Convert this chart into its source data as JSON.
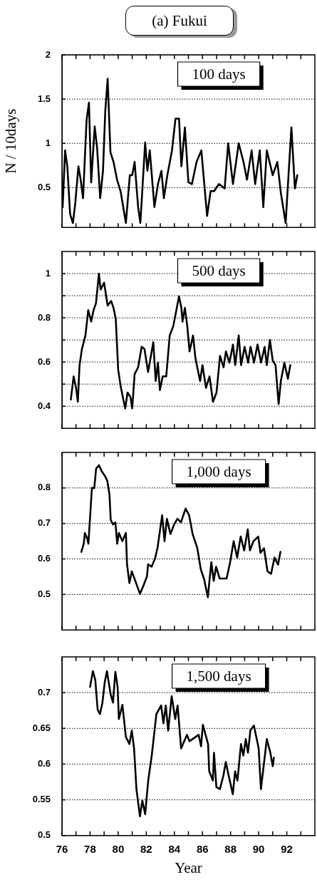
{
  "chart_data": [
    {
      "type": "line",
      "title": "(a) Fukui",
      "ylabel": "N / 10days",
      "annotations": [
        "100 days"
      ],
      "xlim": [
        76,
        94
      ],
      "ylim": [
        0.05,
        2
      ],
      "yticks": [
        0.5,
        1,
        1.5,
        2
      ],
      "xticks": [
        76,
        {
          "value": 77,
          "label": null
        },
        78,
        {
          "value": 79,
          "label": null
        },
        80,
        {
          "value": 81,
          "label": null
        },
        82,
        {
          "value": 83,
          "label": null
        },
        84,
        {
          "value": 85,
          "label": null
        },
        86,
        {
          "value": 87,
          "label": null
        },
        88,
        {
          "value": 89,
          "label": null
        },
        90,
        {
          "value": 91,
          "label": null
        },
        92,
        {
          "value": 93,
          "label": null
        }
      ],
      "tick_labels": "y",
      "grid": "y",
      "legend": false,
      "marker": "none",
      "line_style": "solid",
      "series": [
        {
          "color": "#000000",
          "x": [
            76.05,
            76.22,
            76.38,
            76.58,
            76.78,
            76.95,
            77.17,
            77.33,
            77.5,
            77.75,
            77.92,
            78.08,
            78.33,
            78.5,
            78.72,
            78.92,
            79.08,
            79.25,
            79.45,
            79.67,
            79.92,
            80.17,
            80.55,
            80.83,
            81.0,
            81.17,
            81.42,
            81.58,
            81.92,
            82.08,
            82.25,
            82.58,
            82.83,
            83.08,
            83.25,
            83.5,
            83.83,
            84.08,
            84.33,
            84.5,
            84.75,
            85.0,
            85.25,
            85.58,
            85.92,
            86.33,
            86.58,
            86.83,
            87.17,
            87.58,
            87.83,
            88.17,
            88.58,
            88.92,
            89.17,
            89.5,
            89.75,
            90.08,
            90.33,
            90.58,
            91.0,
            91.33,
            91.58,
            91.92,
            92.33,
            92.58,
            92.75
          ],
          "values": [
            0.28,
            0.92,
            0.74,
            0.2,
            0.1,
            0.33,
            0.74,
            0.59,
            0.38,
            1.26,
            1.46,
            0.56,
            1.19,
            0.95,
            0.38,
            0.69,
            1.36,
            1.73,
            0.9,
            0.79,
            0.59,
            0.46,
            0.1,
            0.64,
            0.64,
            0.79,
            0.28,
            0.1,
            1.01,
            0.69,
            0.92,
            0.28,
            0.54,
            0.69,
            0.38,
            0.64,
            0.92,
            1.28,
            1.28,
            0.74,
            1.18,
            0.56,
            0.54,
            0.79,
            0.92,
            0.18,
            0.46,
            0.46,
            0.54,
            0.49,
            1.0,
            0.54,
            1.0,
            0.79,
            0.59,
            0.92,
            0.54,
            0.92,
            0.28,
            0.92,
            0.64,
            0.79,
            0.44,
            0.1,
            1.18,
            0.49,
            0.64
          ]
        }
      ]
    },
    {
      "type": "line",
      "annotations": [
        "500 days"
      ],
      "xlim": [
        76,
        94
      ],
      "ylim": [
        0.3,
        1.1
      ],
      "yticks": [
        0.4,
        {
          "value": 0.5,
          "label": null
        },
        0.6,
        {
          "value": 0.7,
          "label": null
        },
        0.8,
        {
          "value": 0.9,
          "label": null
        },
        1
      ],
      "xticks": [
        76,
        {
          "value": 77,
          "label": null
        },
        78,
        {
          "value": 79,
          "label": null
        },
        80,
        {
          "value": 81,
          "label": null
        },
        82,
        {
          "value": 83,
          "label": null
        },
        84,
        {
          "value": 85,
          "label": null
        },
        86,
        {
          "value": 87,
          "label": null
        },
        88,
        {
          "value": 89,
          "label": null
        },
        90,
        {
          "value": 91,
          "label": null
        },
        92,
        {
          "value": 93,
          "label": null
        }
      ],
      "tick_labels": "y",
      "grid": "y",
      "legend": false,
      "marker": "none",
      "line_style": "solid",
      "series": [
        {
          "color": "#000000",
          "x": [
            76.63,
            76.83,
            77.0,
            77.13,
            77.25,
            77.42,
            77.67,
            77.87,
            78.08,
            78.25,
            78.42,
            78.63,
            78.75,
            79.0,
            79.25,
            79.5,
            79.67,
            79.83,
            80.0,
            80.17,
            80.33,
            80.5,
            80.67,
            80.87,
            81.0,
            81.17,
            81.42,
            81.67,
            81.87,
            82.13,
            82.33,
            82.5,
            82.67,
            82.83,
            82.97,
            83.17,
            83.42,
            83.67,
            83.92,
            84.08,
            84.33,
            84.5,
            84.58,
            84.75,
            84.92,
            85.08,
            85.33,
            85.5,
            85.83,
            86.0,
            86.25,
            86.5,
            86.75,
            87.0,
            87.25,
            87.5,
            87.67,
            87.92,
            88.17,
            88.33,
            88.58,
            88.75,
            89.0,
            89.25,
            89.42,
            89.67,
            89.92,
            90.17,
            90.42,
            90.58,
            90.8,
            91.0,
            91.2,
            91.42,
            91.58,
            91.83,
            92.08,
            92.25
          ],
          "values": [
            0.43,
            0.535,
            0.483,
            0.42,
            0.586,
            0.659,
            0.72,
            0.835,
            0.783,
            0.835,
            0.866,
            1.0,
            0.928,
            0.959,
            0.855,
            0.876,
            0.845,
            0.793,
            0.566,
            0.493,
            0.442,
            0.39,
            0.462,
            0.442,
            0.39,
            0.545,
            0.576,
            0.669,
            0.659,
            0.555,
            0.628,
            0.69,
            0.514,
            0.597,
            0.473,
            0.535,
            0.535,
            0.72,
            0.762,
            0.814,
            0.897,
            0.845,
            0.783,
            0.845,
            0.762,
            0.648,
            0.72,
            0.617,
            0.514,
            0.586,
            0.483,
            0.535,
            0.42,
            0.462,
            0.628,
            0.576,
            0.648,
            0.597,
            0.679,
            0.586,
            0.72,
            0.586,
            0.669,
            0.597,
            0.669,
            0.597,
            0.679,
            0.597,
            0.669,
            0.586,
            0.7,
            0.607,
            0.586,
            0.41,
            0.514,
            0.597,
            0.524,
            0.586
          ]
        }
      ]
    },
    {
      "type": "line",
      "annotations": [
        "1,000 days"
      ],
      "xlim": [
        76,
        94
      ],
      "ylim": [
        0.4,
        0.9
      ],
      "yticks": [
        0.5,
        0.6,
        0.7,
        0.8
      ],
      "xticks": [
        76,
        {
          "value": 77,
          "label": null
        },
        78,
        {
          "value": 79,
          "label": null
        },
        80,
        {
          "value": 81,
          "label": null
        },
        82,
        {
          "value": 83,
          "label": null
        },
        84,
        {
          "value": 85,
          "label": null
        },
        86,
        {
          "value": 87,
          "label": null
        },
        88,
        {
          "value": 89,
          "label": null
        },
        90,
        {
          "value": 91,
          "label": null
        },
        92,
        {
          "value": 93,
          "label": null
        }
      ],
      "tick_labels": "y",
      "grid": "y",
      "legend": false,
      "marker": "none",
      "line_style": "solid",
      "series": [
        {
          "color": "#000000",
          "x": [
            77.38,
            77.55,
            77.63,
            77.8,
            77.88,
            78.05,
            78.13,
            78.3,
            78.43,
            78.63,
            78.83,
            79.05,
            79.22,
            79.38,
            79.47,
            79.63,
            79.8,
            79.93,
            80.05,
            80.3,
            80.55,
            80.63,
            80.8,
            80.97,
            81.22,
            81.55,
            81.8,
            82.05,
            82.13,
            82.38,
            82.63,
            82.8,
            83.13,
            83.3,
            83.47,
            83.72,
            83.97,
            84.22,
            84.47,
            84.8,
            85.05,
            85.3,
            85.63,
            85.88,
            86.13,
            86.38,
            86.63,
            86.8,
            86.97,
            87.22,
            87.72,
            87.97,
            88.22,
            88.47,
            88.72,
            88.97,
            89.22,
            89.38,
            89.63,
            89.97,
            90.13,
            90.38,
            90.63,
            90.88,
            91.13,
            91.38,
            91.55
          ],
          "values": [
            0.62,
            0.643,
            0.673,
            0.657,
            0.643,
            0.749,
            0.8,
            0.8,
            0.854,
            0.864,
            0.847,
            0.834,
            0.821,
            0.782,
            0.71,
            0.697,
            0.703,
            0.643,
            0.673,
            0.65,
            0.673,
            0.585,
            0.532,
            0.565,
            0.538,
            0.502,
            0.525,
            0.551,
            0.585,
            0.578,
            0.602,
            0.631,
            0.723,
            0.65,
            0.713,
            0.67,
            0.696,
            0.713,
            0.703,
            0.742,
            0.723,
            0.67,
            0.631,
            0.571,
            0.541,
            0.492,
            0.591,
            0.538,
            0.578,
            0.545,
            0.545,
            0.591,
            0.65,
            0.604,
            0.663,
            0.624,
            0.683,
            0.624,
            0.65,
            0.663,
            0.617,
            0.63,
            0.565,
            0.558,
            0.604,
            0.584,
            0.62
          ]
        }
      ]
    },
    {
      "type": "line",
      "xlabel": "Year",
      "annotations": [
        "1,500 days"
      ],
      "xlim": [
        76,
        94
      ],
      "ylim": [
        0.5,
        0.75
      ],
      "yticks": [
        0.5,
        0.55,
        0.6,
        0.65,
        0.7
      ],
      "xticks": [
        76,
        {
          "value": 77,
          "label": null
        },
        78,
        {
          "value": 79,
          "label": null
        },
        80,
        {
          "value": 81,
          "label": null
        },
        82,
        {
          "value": 83,
          "label": null
        },
        84,
        {
          "value": 85,
          "label": null
        },
        86,
        {
          "value": 87,
          "label": null
        },
        88,
        {
          "value": 89,
          "label": null
        },
        90,
        {
          "value": 91,
          "label": null
        },
        92,
        {
          "value": 93,
          "label": null
        }
      ],
      "grid": "y",
      "legend": false,
      "marker": "none",
      "line_style": "solid",
      "series": [
        {
          "color": "#000000",
          "x": [
            78.0,
            78.2,
            78.37,
            78.54,
            78.7,
            78.88,
            79.04,
            79.2,
            79.46,
            79.63,
            79.8,
            79.96,
            80.05,
            80.3,
            80.55,
            80.8,
            80.97,
            81.13,
            81.3,
            81.55,
            81.72,
            81.92,
            82.14,
            82.39,
            82.72,
            83.06,
            83.22,
            83.39,
            83.56,
            83.81,
            84.06,
            84.23,
            84.48,
            84.9,
            85.07,
            85.73,
            85.9,
            86.03,
            86.4,
            86.48,
            86.74,
            86.82,
            86.99,
            87.24,
            87.49,
            87.66,
            87.83,
            88.16,
            88.32,
            88.49,
            88.74,
            88.91,
            89.08,
            89.24,
            89.41,
            89.66,
            90.0,
            90.16,
            90.33,
            90.58,
            90.83,
            91.0,
            91.08
          ],
          "values": [
            0.708,
            0.73,
            0.718,
            0.676,
            0.67,
            0.686,
            0.714,
            0.73,
            0.698,
            0.686,
            0.729,
            0.708,
            0.663,
            0.683,
            0.638,
            0.628,
            0.647,
            0.622,
            0.565,
            0.527,
            0.549,
            0.53,
            0.577,
            0.612,
            0.67,
            0.682,
            0.657,
            0.682,
            0.647,
            0.695,
            0.663,
            0.682,
            0.622,
            0.641,
            0.632,
            0.641,
            0.625,
            0.655,
            0.628,
            0.59,
            0.577,
            0.616,
            0.568,
            0.565,
            0.584,
            0.603,
            0.587,
            0.558,
            0.59,
            0.577,
            0.628,
            0.612,
            0.635,
            0.616,
            0.647,
            0.654,
            0.622,
            0.565,
            0.593,
            0.635,
            0.616,
            0.597,
            0.609
          ]
        }
      ]
    }
  ]
}
